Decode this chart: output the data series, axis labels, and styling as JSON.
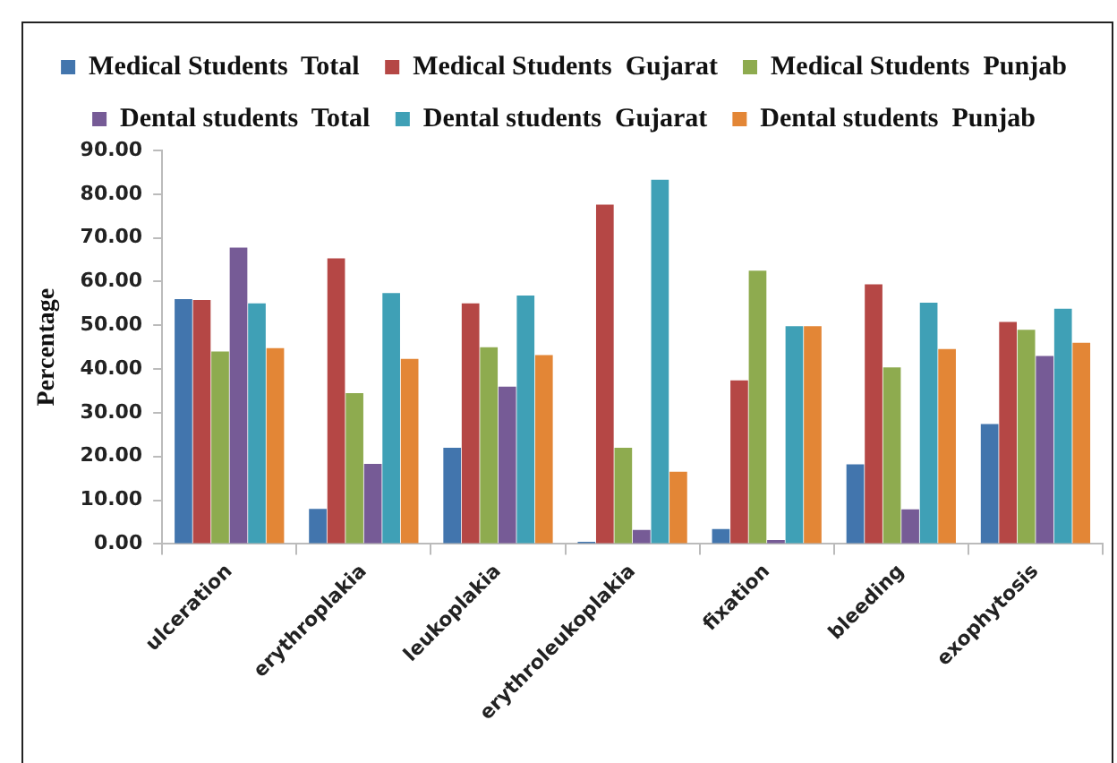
{
  "chart_data": {
    "type": "bar",
    "ylabel": "Percentage",
    "categories": [
      "ulceration",
      "erythroplakia",
      "leukoplakia",
      "erythroleukoplakia",
      "fixation",
      "bleeding",
      "exophytosis"
    ],
    "series": [
      {
        "name": "Medical Students  Total",
        "color": "#4275ad",
        "values": [
          56,
          8,
          22,
          0.5,
          3.4,
          18.2,
          27.4
        ]
      },
      {
        "name": "Medical Students  Gujarat",
        "color": "#b54745",
        "values": [
          55.8,
          65.3,
          55,
          77.6,
          37.4,
          59.4,
          50.8
        ]
      },
      {
        "name": "Medical Students  Punjab",
        "color": "#8eab4f",
        "values": [
          44,
          34.5,
          45,
          22,
          62.5,
          40.4,
          49
        ]
      },
      {
        "name": "Dental students  Total",
        "color": "#765b96",
        "values": [
          67.8,
          18.3,
          36,
          3.2,
          0.9,
          7.9,
          43
        ]
      },
      {
        "name": "Dental students  Gujarat",
        "color": "#3fa0b6",
        "values": [
          55,
          57.4,
          56.8,
          83.3,
          49.8,
          55.2,
          53.8
        ]
      },
      {
        "name": "Dental students  Punjab",
        "color": "#e38636",
        "values": [
          44.8,
          42.3,
          43.2,
          16.5,
          49.8,
          44.6,
          46
        ]
      }
    ],
    "ylim": [
      0,
      90
    ],
    "yticks": [
      {
        "value": 0,
        "label": "0.00"
      },
      {
        "value": 10,
        "label": "10.00"
      },
      {
        "value": 20,
        "label": "20.00"
      },
      {
        "value": 30,
        "label": "30.00"
      },
      {
        "value": 40,
        "label": "40.00"
      },
      {
        "value": 50,
        "label": "50.00"
      },
      {
        "value": 60,
        "label": "60.00"
      },
      {
        "value": 70,
        "label": "70.00"
      },
      {
        "value": 80,
        "label": "80.00"
      },
      {
        "value": 90,
        "label": "90.00"
      }
    ],
    "grid": false,
    "legend": "top"
  }
}
